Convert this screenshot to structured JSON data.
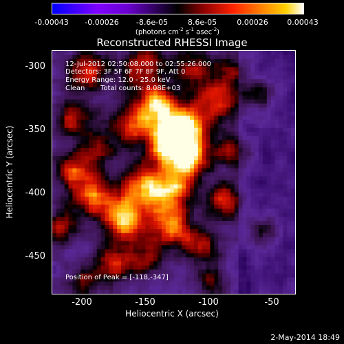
{
  "colorbar": {
    "ticks": [
      "-0.00043",
      "-0.00026",
      "-8.6e-05",
      "8.6e-05",
      "0.00026",
      "0.00043"
    ],
    "unit_prefix": "(photons cm",
    "unit_exp1": "-2",
    "unit_mid1": " s",
    "unit_exp2": "-1",
    "unit_mid2": " asec",
    "unit_exp3": "-2",
    "unit_suffix": ")",
    "colors": [
      "#0000ff",
      "#7f00ff",
      "#000000",
      "#ff2200",
      "#ffd000",
      "#ffffff"
    ]
  },
  "title": "Reconstructed RHESSI Image",
  "annotations": {
    "time_range": "12-Jul-2012 02:50:08.000 to 02:55:26.000",
    "detectors": "Detectors: 3F 5F 6F 7F 8F 9F, Att 0",
    "energy_range": "Energy Range: 12.0 - 25.0 keV",
    "clean_label": "Clean",
    "total_counts": "Total counts: 8.08E+03",
    "peak": "Position of Peak = [-118,-347]"
  },
  "chart_data": {
    "type": "heatmap",
    "title": "Reconstructed RHESSI Image",
    "xlabel": "Heliocentric X (arcsec)",
    "ylabel": "Heliocentric Y (arcsec)",
    "xlim": [
      -222,
      -30
    ],
    "ylim": [
      -478,
      -286
    ],
    "xticks": [
      "-200",
      "-150",
      "-100",
      "-50"
    ],
    "xtick_values": [
      -200,
      -150,
      -100,
      -50
    ],
    "yticks": [
      "-300",
      "-350",
      "-400",
      "-450"
    ],
    "ytick_values": [
      -300,
      -350,
      -400,
      -450
    ],
    "zlim": [
      -0.00043,
      0.00043
    ],
    "peak": [
      -118,
      -347
    ],
    "grid": false
  },
  "footer": {
    "timestamp": "2-May-2014 18:49"
  }
}
